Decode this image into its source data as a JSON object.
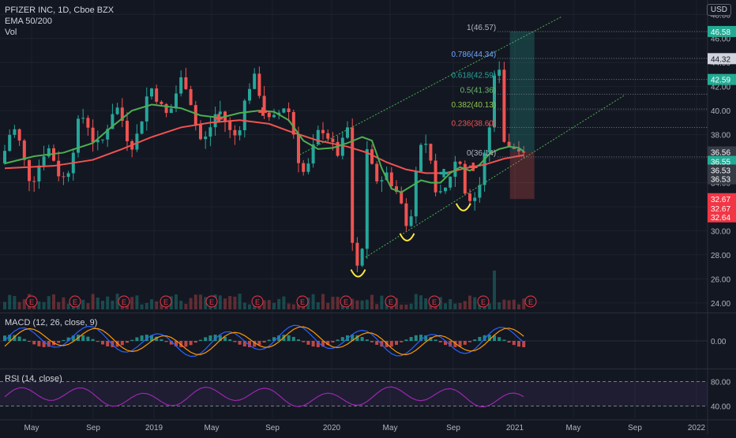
{
  "header": {
    "symbol": "PFIZER INC, 1D, Cboe BZX",
    "indicator_ema": "EMA 50/200",
    "indicator_vol": "Vol"
  },
  "currency_button": "USD",
  "panes": {
    "macd_label": "MACD (12, 26, close, 9)",
    "rsi_label": "RSI (14, close)"
  },
  "chart_data": {
    "type": "candlestick",
    "instrument": "PFIZER INC",
    "timeframe": "1D",
    "exchange": "Cboe BZX",
    "price_axis": {
      "ticks": [
        48,
        46,
        44,
        42,
        40,
        38,
        36,
        34,
        32,
        30,
        28,
        26,
        24
      ],
      "labels": [
        "48.00",
        "46.00",
        "44.00",
        "42.00",
        "40.00",
        "38.00",
        "36.00",
        "34.00",
        "32.00",
        "30.00",
        "28.00",
        "26.00",
        "24.00"
      ],
      "ylim": [
        23.2,
        49.2
      ]
    },
    "time_axis": [
      "May",
      "Sep",
      "2019",
      "May",
      "Sep",
      "2020",
      "May",
      "Sep",
      "2021",
      "May",
      "Sep",
      "2022"
    ],
    "ema50": [
      [
        0,
        35.6
      ],
      [
        6,
        36.2
      ],
      [
        12,
        36.5
      ],
      [
        18,
        37.3
      ],
      [
        22,
        38.7
      ],
      [
        26,
        40.0
      ],
      [
        30,
        40.5
      ],
      [
        36,
        40.2
      ],
      [
        40,
        39.6
      ],
      [
        44,
        39.4
      ],
      [
        48,
        39.8
      ],
      [
        52,
        40.0
      ],
      [
        55,
        39.9
      ],
      [
        58,
        39.2
      ],
      [
        61,
        37.5
      ],
      [
        64,
        36.8
      ],
      [
        67,
        36.9
      ],
      [
        70,
        37.3
      ],
      [
        73,
        37.8
      ],
      [
        75,
        37.5
      ],
      [
        77,
        35.2
      ],
      [
        79,
        33.5
      ],
      [
        81,
        33.2
      ],
      [
        83,
        33.7
      ],
      [
        85,
        34.2
      ],
      [
        87,
        34.0
      ],
      [
        89,
        34.0
      ],
      [
        91,
        34.8
      ],
      [
        93,
        35.3
      ],
      [
        95,
        35.0
      ],
      [
        97,
        35.5
      ],
      [
        99,
        36.4
      ],
      [
        101,
        36.8
      ],
      [
        103,
        37.0
      ],
      [
        105,
        36.9
      ],
      [
        106,
        36.6
      ]
    ],
    "ema200": [
      [
        0,
        35.2
      ],
      [
        10,
        35.4
      ],
      [
        18,
        35.9
      ],
      [
        24,
        36.8
      ],
      [
        30,
        37.8
      ],
      [
        36,
        38.6
      ],
      [
        42,
        39.0
      ],
      [
        48,
        39.2
      ],
      [
        54,
        38.9
      ],
      [
        58,
        38.3
      ],
      [
        64,
        37.5
      ],
      [
        70,
        37.0
      ],
      [
        74,
        36.5
      ],
      [
        78,
        35.7
      ],
      [
        82,
        35.1
      ],
      [
        86,
        34.8
      ],
      [
        90,
        34.8
      ],
      [
        94,
        35.2
      ],
      [
        98,
        35.5
      ],
      [
        102,
        36.0
      ],
      [
        106,
        36.3
      ]
    ],
    "channel_lines": [
      {
        "style": "dotted",
        "color": "#4caf50",
        "from": [
          60.0,
          36.2
        ],
        "to": [
          114.0,
          47.8
        ]
      },
      {
        "style": "dotted",
        "color": "#4caf50",
        "from": [
          74.0,
          27.8
        ],
        "to": [
          127.0,
          41.3
        ]
      }
    ],
    "fibonacci": [
      {
        "label": "1(46.57)",
        "value": 46.57,
        "color": "#b2b5be"
      },
      {
        "label": "0.786(44.34)",
        "value": 44.34,
        "color": "#6ea7ff"
      },
      {
        "label": "0.618(42.59)",
        "value": 42.59,
        "color": "#26a69a"
      },
      {
        "label": "0.5(41.36)",
        "value": 41.36,
        "color": "#66bb6a"
      },
      {
        "label": "0.382(40.13)",
        "value": 40.13,
        "color": "#8bc34a"
      },
      {
        "label": "0.236(38.60)",
        "value": 38.6,
        "color": "#ef5350"
      },
      {
        "label": "0(36.14)",
        "value": 36.14,
        "color": "#b2b5be"
      }
    ],
    "long_position": {
      "entry": 36.55,
      "target": 46.58,
      "stop": 32.64,
      "start": 103.5,
      "end": 108.5
    },
    "pattern_marks": [
      [
        72.5,
        27.3
      ],
      [
        82.5,
        30.3
      ],
      [
        94,
        32.8
      ]
    ],
    "price_labels": [
      {
        "text": "46.58",
        "value": 46.58,
        "color": "#22ab94"
      },
      {
        "text": "44.32",
        "value": 44.32,
        "color": "#131722"
      },
      {
        "text": "42.59",
        "value": 42.59,
        "color": "#22ab94"
      },
      {
        "text": "36.56",
        "value": 36.56,
        "color": "#363a45"
      },
      {
        "text": "36.55",
        "value": 36.55,
        "color": "#22ab94"
      },
      {
        "text": "36.53",
        "value": 36.53,
        "color": "#363a45"
      },
      {
        "text": "36.53",
        "value": 36.53,
        "color": "#363a45"
      },
      {
        "text": "32.67",
        "value": 32.67,
        "color": "#f23645"
      },
      {
        "text": "32.67",
        "value": 32.67,
        "color": "#f23645"
      },
      {
        "text": "32.64",
        "value": 32.64,
        "color": "#f23645"
      }
    ],
    "earnings_marker": "E",
    "macd": {
      "axis_label": "0.00",
      "zero": 0
    },
    "rsi": {
      "axis_labels": [
        "80.00",
        "40.00"
      ],
      "upper": 80,
      "lower": 40
    }
  },
  "colors": {
    "up": "#26a69a",
    "down": "#ef5350",
    "ema50": "#4caf50",
    "ema200": "#f05350",
    "macd": "#2962ff",
    "signal": "#ff9800",
    "rsi": "#9c27b0",
    "marker": "#ffeb3b"
  }
}
